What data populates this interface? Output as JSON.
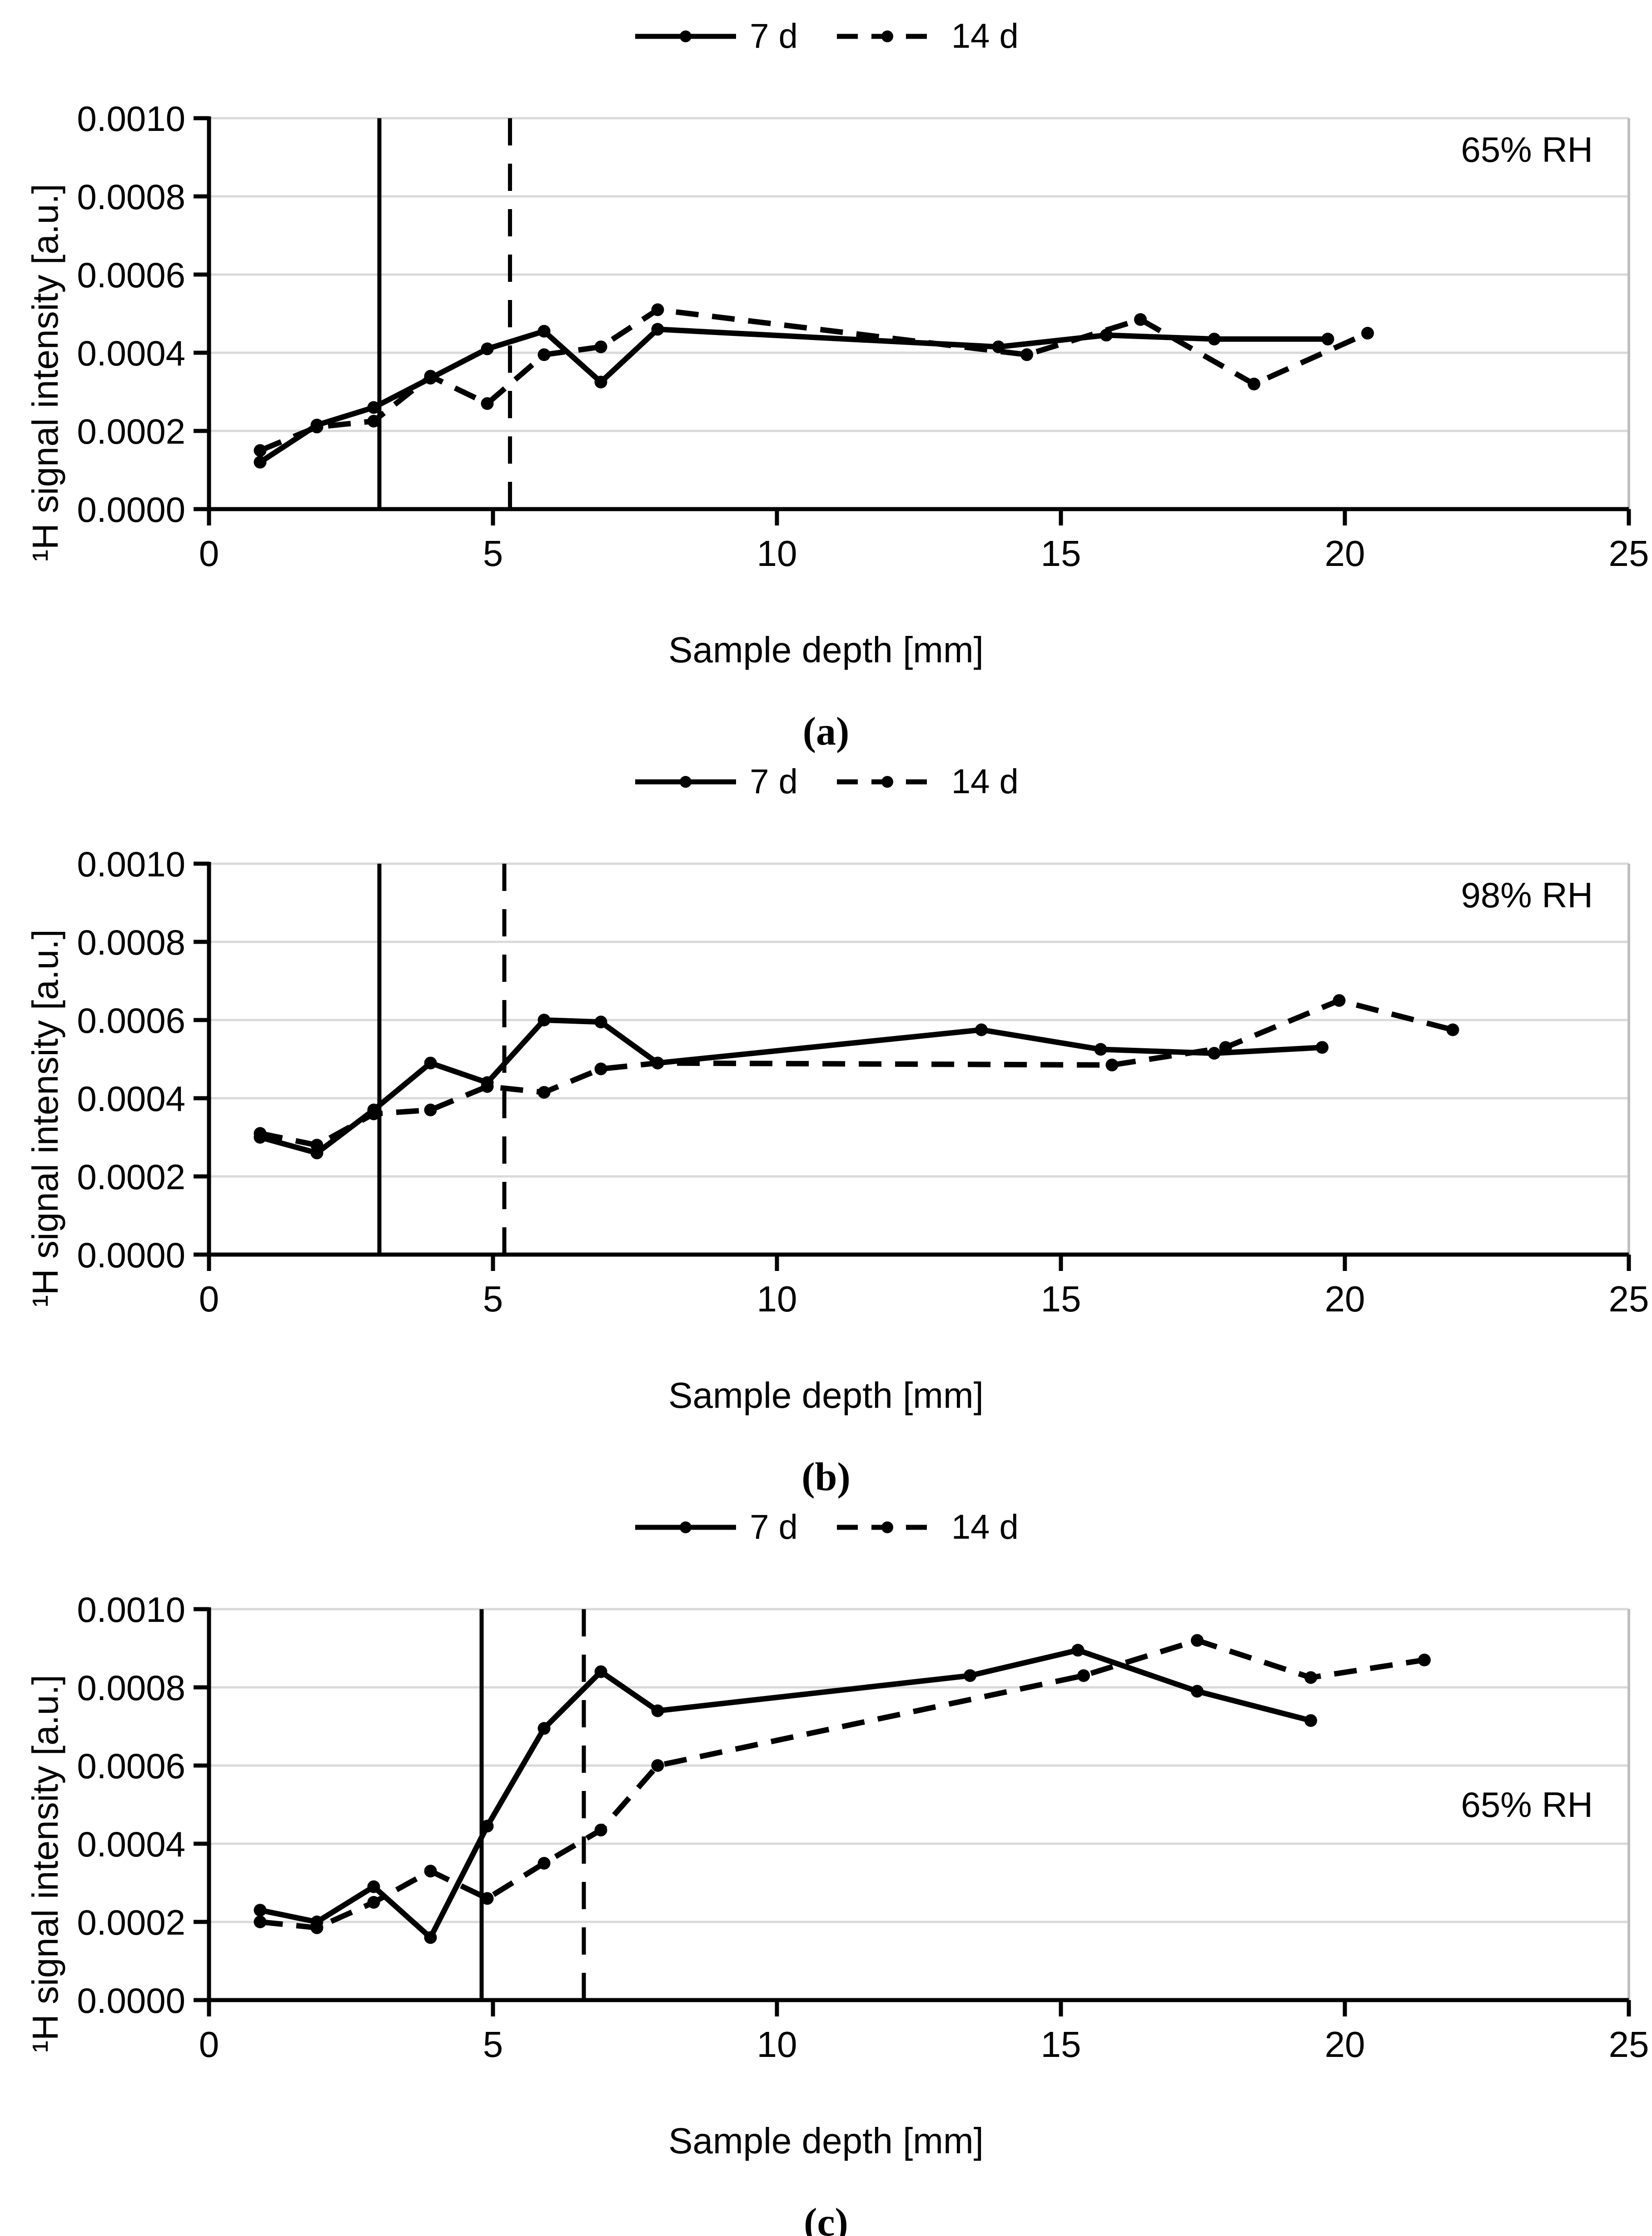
{
  "figure": {
    "background": "#ffffff",
    "colors": {
      "series": "#000000",
      "axis": "#000000",
      "gridline": "#d9d9d9",
      "plot_right_border": "#bfbfbf",
      "text": "#000000"
    }
  },
  "chart_data": [
    {
      "type": "line",
      "panel_label": "(a)",
      "annotation": {
        "text": "65% RH",
        "y": 0.00092
      },
      "xlabel": "Sample depth [mm]",
      "ylabel": "¹H signal intensity [a.u.]",
      "xlim": [
        0,
        25
      ],
      "ylim": [
        0,
        0.001
      ],
      "x_ticks": [
        0,
        5,
        10,
        15,
        20,
        25
      ],
      "y_ticks": [
        {
          "value": 0.0,
          "label": "0.0000"
        },
        {
          "value": 0.0002,
          "label": "0.0002"
        },
        {
          "value": 0.0004,
          "label": "0.0004"
        },
        {
          "value": 0.0006,
          "label": "0.0006"
        },
        {
          "value": 0.0008,
          "label": "0.0008"
        },
        {
          "value": 0.001,
          "label": "0.0010"
        }
      ],
      "grid": true,
      "legend_position": "top-center",
      "reference_lines": {
        "solid_x": 3.0,
        "dashed_x": 5.3
      },
      "series": [
        {
          "name": "7 d",
          "style": "solid",
          "marker": "circle",
          "points": [
            [
              0.9,
              0.00012
            ],
            [
              1.9,
              0.000215
            ],
            [
              2.9,
              0.00026
            ],
            [
              3.9,
              0.000335
            ],
            [
              4.9,
              0.00041
            ],
            [
              5.9,
              0.000455
            ],
            [
              6.9,
              0.000325
            ],
            [
              7.9,
              0.00046
            ],
            [
              13.9,
              0.000415
            ],
            [
              15.8,
              0.000445
            ],
            [
              17.7,
              0.000435
            ],
            [
              19.7,
              0.000435
            ]
          ]
        },
        {
          "name": "14 d",
          "style": "dashed",
          "marker": "circle",
          "points": [
            [
              0.9,
              0.00015
            ],
            [
              1.9,
              0.00021
            ],
            [
              2.9,
              0.000225
            ],
            [
              3.9,
              0.00034
            ],
            [
              4.9,
              0.00027
            ],
            [
              5.9,
              0.000395
            ],
            [
              6.9,
              0.000415
            ],
            [
              7.9,
              0.00051
            ],
            [
              14.4,
              0.000395
            ],
            [
              16.4,
              0.000485
            ],
            [
              18.4,
              0.00032
            ],
            [
              20.4,
              0.00045
            ]
          ]
        }
      ]
    },
    {
      "type": "line",
      "panel_label": "(b)",
      "annotation": {
        "text": "98% RH",
        "y": 0.00092
      },
      "xlabel": "Sample depth [mm]",
      "ylabel": "¹H signal intensity [a.u.]",
      "xlim": [
        0,
        25
      ],
      "ylim": [
        0,
        0.001
      ],
      "x_ticks": [
        0,
        5,
        10,
        15,
        20,
        25
      ],
      "y_ticks": [
        {
          "value": 0.0,
          "label": "0.0000"
        },
        {
          "value": 0.0002,
          "label": "0.0002"
        },
        {
          "value": 0.0004,
          "label": "0.0004"
        },
        {
          "value": 0.0006,
          "label": "0.0006"
        },
        {
          "value": 0.0008,
          "label": "0.0008"
        },
        {
          "value": 0.001,
          "label": "0.0010"
        }
      ],
      "grid": true,
      "legend_position": "top-center",
      "reference_lines": {
        "solid_x": 3.0,
        "dashed_x": 5.2
      },
      "series": [
        {
          "name": "7 d",
          "style": "solid",
          "marker": "circle",
          "points": [
            [
              0.9,
              0.0003
            ],
            [
              1.9,
              0.00026
            ],
            [
              2.9,
              0.00037
            ],
            [
              3.9,
              0.00049
            ],
            [
              4.9,
              0.00044
            ],
            [
              5.9,
              0.0006
            ],
            [
              6.9,
              0.000595
            ],
            [
              7.9,
              0.00049
            ],
            [
              13.6,
              0.000575
            ],
            [
              15.7,
              0.000525
            ],
            [
              17.7,
              0.000515
            ],
            [
              19.6,
              0.00053
            ]
          ]
        },
        {
          "name": "14 d",
          "style": "dashed",
          "marker": "circle",
          "points": [
            [
              0.9,
              0.00031
            ],
            [
              1.9,
              0.00028
            ],
            [
              2.9,
              0.00036
            ],
            [
              3.9,
              0.00037
            ],
            [
              4.9,
              0.00043
            ],
            [
              5.9,
              0.000415
            ],
            [
              6.9,
              0.000475
            ],
            [
              7.9,
              0.00049
            ],
            [
              15.9,
              0.000485
            ],
            [
              17.9,
              0.00053
            ],
            [
              19.9,
              0.00065
            ],
            [
              21.9,
              0.000575
            ]
          ]
        }
      ]
    },
    {
      "type": "line",
      "panel_label": "(c)",
      "annotation": {
        "text": "65% RH",
        "y": 0.0005
      },
      "xlabel": "Sample depth [mm]",
      "ylabel": "¹H signal intensity [a.u.]",
      "xlim": [
        0,
        25
      ],
      "ylim": [
        0,
        0.001
      ],
      "x_ticks": [
        0,
        5,
        10,
        15,
        20,
        25
      ],
      "y_ticks": [
        {
          "value": 0.0,
          "label": "0.0000"
        },
        {
          "value": 0.0002,
          "label": "0.0002"
        },
        {
          "value": 0.0004,
          "label": "0.0004"
        },
        {
          "value": 0.0006,
          "label": "0.0006"
        },
        {
          "value": 0.0008,
          "label": "0.0008"
        },
        {
          "value": 0.001,
          "label": "0.0010"
        }
      ],
      "grid": true,
      "legend_position": "top-center",
      "reference_lines": {
        "solid_x": 4.8,
        "dashed_x": 6.6
      },
      "series": [
        {
          "name": "7 d",
          "style": "solid",
          "marker": "circle",
          "points": [
            [
              0.9,
              0.00023
            ],
            [
              1.9,
              0.0002
            ],
            [
              2.9,
              0.00029
            ],
            [
              3.9,
              0.00016
            ],
            [
              4.9,
              0.000445
            ],
            [
              5.9,
              0.000695
            ],
            [
              6.9,
              0.00084
            ],
            [
              7.9,
              0.00074
            ],
            [
              13.4,
              0.00083
            ],
            [
              15.3,
              0.000895
            ],
            [
              17.4,
              0.00079
            ],
            [
              19.4,
              0.000715
            ]
          ]
        },
        {
          "name": "14 d",
          "style": "dashed",
          "marker": "circle",
          "points": [
            [
              0.9,
              0.0002
            ],
            [
              1.9,
              0.000185
            ],
            [
              2.9,
              0.00025
            ],
            [
              3.9,
              0.00033
            ],
            [
              4.9,
              0.00026
            ],
            [
              5.9,
              0.00035
            ],
            [
              6.9,
              0.000435
            ],
            [
              7.9,
              0.0006
            ],
            [
              15.4,
              0.00083
            ],
            [
              17.4,
              0.00092
            ],
            [
              19.4,
              0.000825
            ],
            [
              21.4,
              0.00087
            ]
          ]
        }
      ]
    }
  ]
}
